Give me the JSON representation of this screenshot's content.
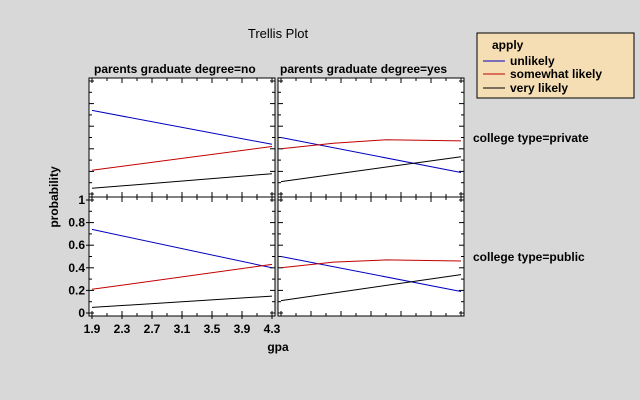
{
  "chart_data": {
    "type": "line",
    "title": "Trellis Plot",
    "xlabel": "gpa",
    "ylabel": "probability",
    "xlim": [
      1.9,
      4.3
    ],
    "ylim": [
      0,
      1
    ],
    "x_ticks": [
      "1.9",
      "2.3",
      "2.7",
      "3.1",
      "3.5",
      "3.9",
      "4.3"
    ],
    "y_ticks": [
      "0",
      "0.2",
      "0.4",
      "0.6",
      "0.8",
      "1"
    ],
    "grid": false,
    "column_headers": [
      "parents graduate degree=no",
      "parents graduate degree=yes"
    ],
    "row_headers": [
      "college type=private",
      "college type=public"
    ],
    "legend": {
      "title": "apply",
      "placement": "top-right",
      "entries": [
        {
          "label": "unlikely",
          "color": "#0000c0"
        },
        {
          "label": "somewhat likely",
          "color": "#c00000"
        },
        {
          "label": "very likely",
          "color": "#000000"
        }
      ]
    },
    "panels": [
      {
        "row": 0,
        "col": 0,
        "series": [
          {
            "name": "unlikely",
            "x": [
              1.9,
              4.3
            ],
            "y": [
              0.74,
              0.44
            ]
          },
          {
            "name": "somewhat likely",
            "x": [
              1.9,
              4.3
            ],
            "y": [
              0.21,
              0.42
            ]
          },
          {
            "name": "very likely",
            "x": [
              1.9,
              4.3
            ],
            "y": [
              0.05,
              0.18
            ]
          }
        ]
      },
      {
        "row": 0,
        "col": 1,
        "series": [
          {
            "name": "unlikely",
            "x": [
              1.9,
              4.3
            ],
            "y": [
              0.5,
              0.19
            ]
          },
          {
            "name": "somewhat likely",
            "x": [
              1.9,
              2.6,
              3.3,
              4.3
            ],
            "y": [
              0.4,
              0.45,
              0.48,
              0.47
            ]
          },
          {
            "name": "very likely",
            "x": [
              1.9,
              4.3
            ],
            "y": [
              0.11,
              0.33
            ]
          }
        ]
      },
      {
        "row": 1,
        "col": 0,
        "series": [
          {
            "name": "unlikely",
            "x": [
              1.9,
              4.3
            ],
            "y": [
              0.74,
              0.4
            ]
          },
          {
            "name": "somewhat likely",
            "x": [
              1.9,
              4.3
            ],
            "y": [
              0.21,
              0.43
            ]
          },
          {
            "name": "very likely",
            "x": [
              1.9,
              4.3
            ],
            "y": [
              0.05,
              0.15
            ]
          }
        ]
      },
      {
        "row": 1,
        "col": 1,
        "series": [
          {
            "name": "unlikely",
            "x": [
              1.9,
              4.3
            ],
            "y": [
              0.5,
              0.19
            ]
          },
          {
            "name": "somewhat likely",
            "x": [
              1.9,
              2.6,
              3.3,
              4.3
            ],
            "y": [
              0.4,
              0.45,
              0.47,
              0.46
            ]
          },
          {
            "name": "very likely",
            "x": [
              1.9,
              4.3
            ],
            "y": [
              0.11,
              0.34
            ]
          }
        ]
      }
    ]
  }
}
